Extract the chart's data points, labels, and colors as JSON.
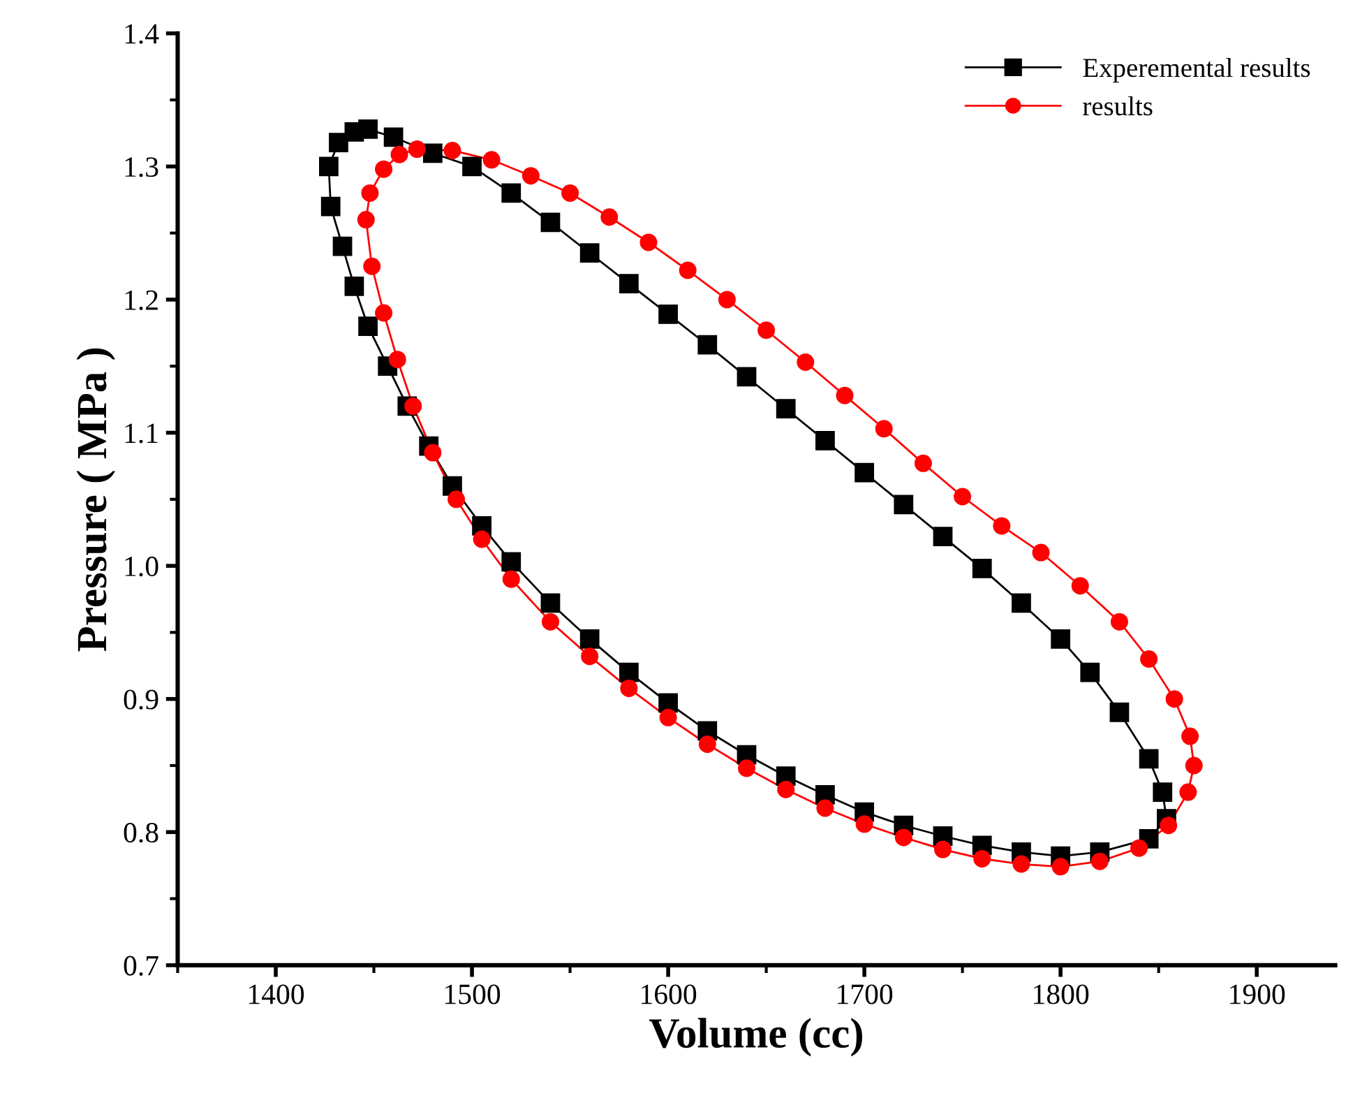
{
  "chart_data": {
    "type": "scatter",
    "line_style": "solid",
    "xlabel": "Volume (cc)",
    "ylabel": "Pressure ( MPa )",
    "xlim": [
      1350,
      1940
    ],
    "xticks": [
      1400,
      1500,
      1600,
      1700,
      1800,
      1900
    ],
    "ylim": [
      0.7,
      1.4
    ],
    "yticks": [
      {
        "value": 0.7,
        "label": "0.7"
      },
      {
        "value": 0.8,
        "label": "0.8"
      },
      {
        "value": 0.9,
        "label": "0.9"
      },
      {
        "value": 1.0,
        "label": "1.0"
      },
      {
        "value": 1.1,
        "label": "1.1"
      },
      {
        "value": 1.2,
        "label": "1.2"
      },
      {
        "value": 1.3,
        "label": "1.3"
      },
      {
        "value": 1.4,
        "label": "1.4"
      }
    ],
    "legend": "top right",
    "series": [
      {
        "name": "Experemental results",
        "color": "#000000",
        "marker": "square",
        "x": [
          1447,
          1460,
          1480,
          1500,
          1520,
          1540,
          1560,
          1580,
          1600,
          1620,
          1640,
          1660,
          1680,
          1700,
          1720,
          1740,
          1760,
          1780,
          1800,
          1815,
          1830,
          1845,
          1852,
          1854,
          1845,
          1820,
          1800,
          1780,
          1760,
          1740,
          1720,
          1700,
          1680,
          1660,
          1640,
          1620,
          1600,
          1580,
          1560,
          1540,
          1520,
          1505,
          1490,
          1478,
          1467,
          1457,
          1447,
          1440,
          1434,
          1428,
          1427,
          1432,
          1440
        ],
        "values": [
          1.328,
          1.322,
          1.31,
          1.3,
          1.28,
          1.258,
          1.235,
          1.212,
          1.189,
          1.166,
          1.142,
          1.118,
          1.094,
          1.07,
          1.046,
          1.022,
          0.998,
          0.972,
          0.945,
          0.92,
          0.89,
          0.855,
          0.83,
          0.81,
          0.795,
          0.785,
          0.782,
          0.785,
          0.79,
          0.797,
          0.805,
          0.815,
          0.828,
          0.842,
          0.858,
          0.876,
          0.897,
          0.92,
          0.945,
          0.972,
          1.003,
          1.03,
          1.06,
          1.09,
          1.12,
          1.15,
          1.18,
          1.21,
          1.24,
          1.27,
          1.3,
          1.318,
          1.326
        ]
      },
      {
        "name": "results",
        "color": "#ff0000",
        "marker": "circle",
        "x": [
          1472,
          1490,
          1510,
          1530,
          1550,
          1570,
          1590,
          1610,
          1630,
          1650,
          1670,
          1690,
          1710,
          1730,
          1750,
          1770,
          1790,
          1810,
          1830,
          1845,
          1858,
          1866,
          1868,
          1865,
          1855,
          1840,
          1820,
          1800,
          1780,
          1760,
          1740,
          1720,
          1700,
          1680,
          1660,
          1640,
          1620,
          1600,
          1580,
          1560,
          1540,
          1520,
          1505,
          1492,
          1480,
          1470,
          1462,
          1455,
          1449,
          1446,
          1448,
          1455,
          1463
        ],
        "values": [
          1.313,
          1.312,
          1.305,
          1.293,
          1.28,
          1.262,
          1.243,
          1.222,
          1.2,
          1.177,
          1.153,
          1.128,
          1.103,
          1.077,
          1.052,
          1.03,
          1.01,
          0.985,
          0.958,
          0.93,
          0.9,
          0.872,
          0.85,
          0.83,
          0.805,
          0.788,
          0.778,
          0.774,
          0.776,
          0.78,
          0.787,
          0.796,
          0.806,
          0.818,
          0.832,
          0.848,
          0.866,
          0.886,
          0.908,
          0.932,
          0.958,
          0.99,
          1.02,
          1.05,
          1.085,
          1.12,
          1.155,
          1.19,
          1.225,
          1.26,
          1.28,
          1.298,
          1.309
        ]
      }
    ]
  }
}
